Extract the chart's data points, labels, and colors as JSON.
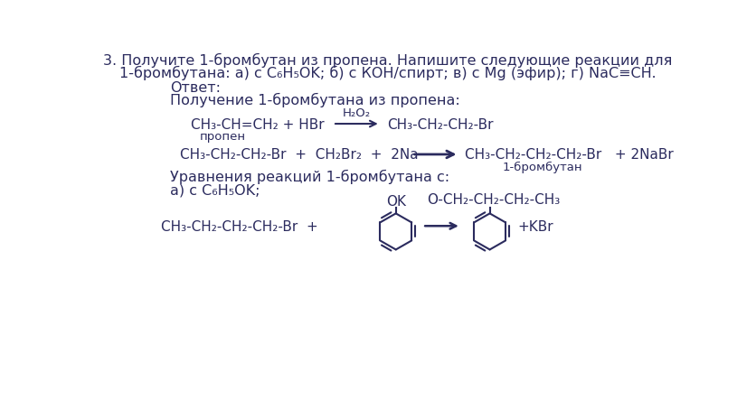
{
  "bg_color": "#ffffff",
  "text_color": "#2b2b5e",
  "title_line1": "3. Получите 1-бромбутан из пропена. Напишите следующие реакции для",
  "title_line2": "1-бромбутана: а) с C₆H₅OK; б) с КОН/спирт; в) с Mg (эфир); г) NaC≡CH.",
  "label_otvet": "Ответ:",
  "label_poluchenie": "Получение 1-бромбутана из пропена:",
  "eq1_left": "CH₃-CH=CH₂ + HBr",
  "eq1_catalyst": "H₂O₂",
  "eq1_right": "CH₃-CH₂-CH₂-Br",
  "eq1_sublabel": "пропен",
  "eq2_left": "CH₃-CH₂-CH₂-Br  +  CH₂Br₂  +  2Na",
  "eq2_right": "CH₃-CH₂-CH₂-CH₂-Br   + 2NaBr",
  "eq2_sublabel": "1-бромбутан",
  "label_uravneniya": "Уравнения реакций 1-бромбутана с:",
  "label_a": "а) с C₆H₅OK;",
  "eq3_left": "CH₃-CH₂-CH₂-CH₂-Br  +",
  "eq3_ok_label": "OK",
  "eq3_right_label": "O-CH₂-CH₂-CH₂-CH₃",
  "eq3_product_label": "+KBr",
  "fontsize_title": 11.5,
  "fontsize_body": 11.5,
  "fontsize_chem": 11,
  "fontsize_small": 9.5
}
